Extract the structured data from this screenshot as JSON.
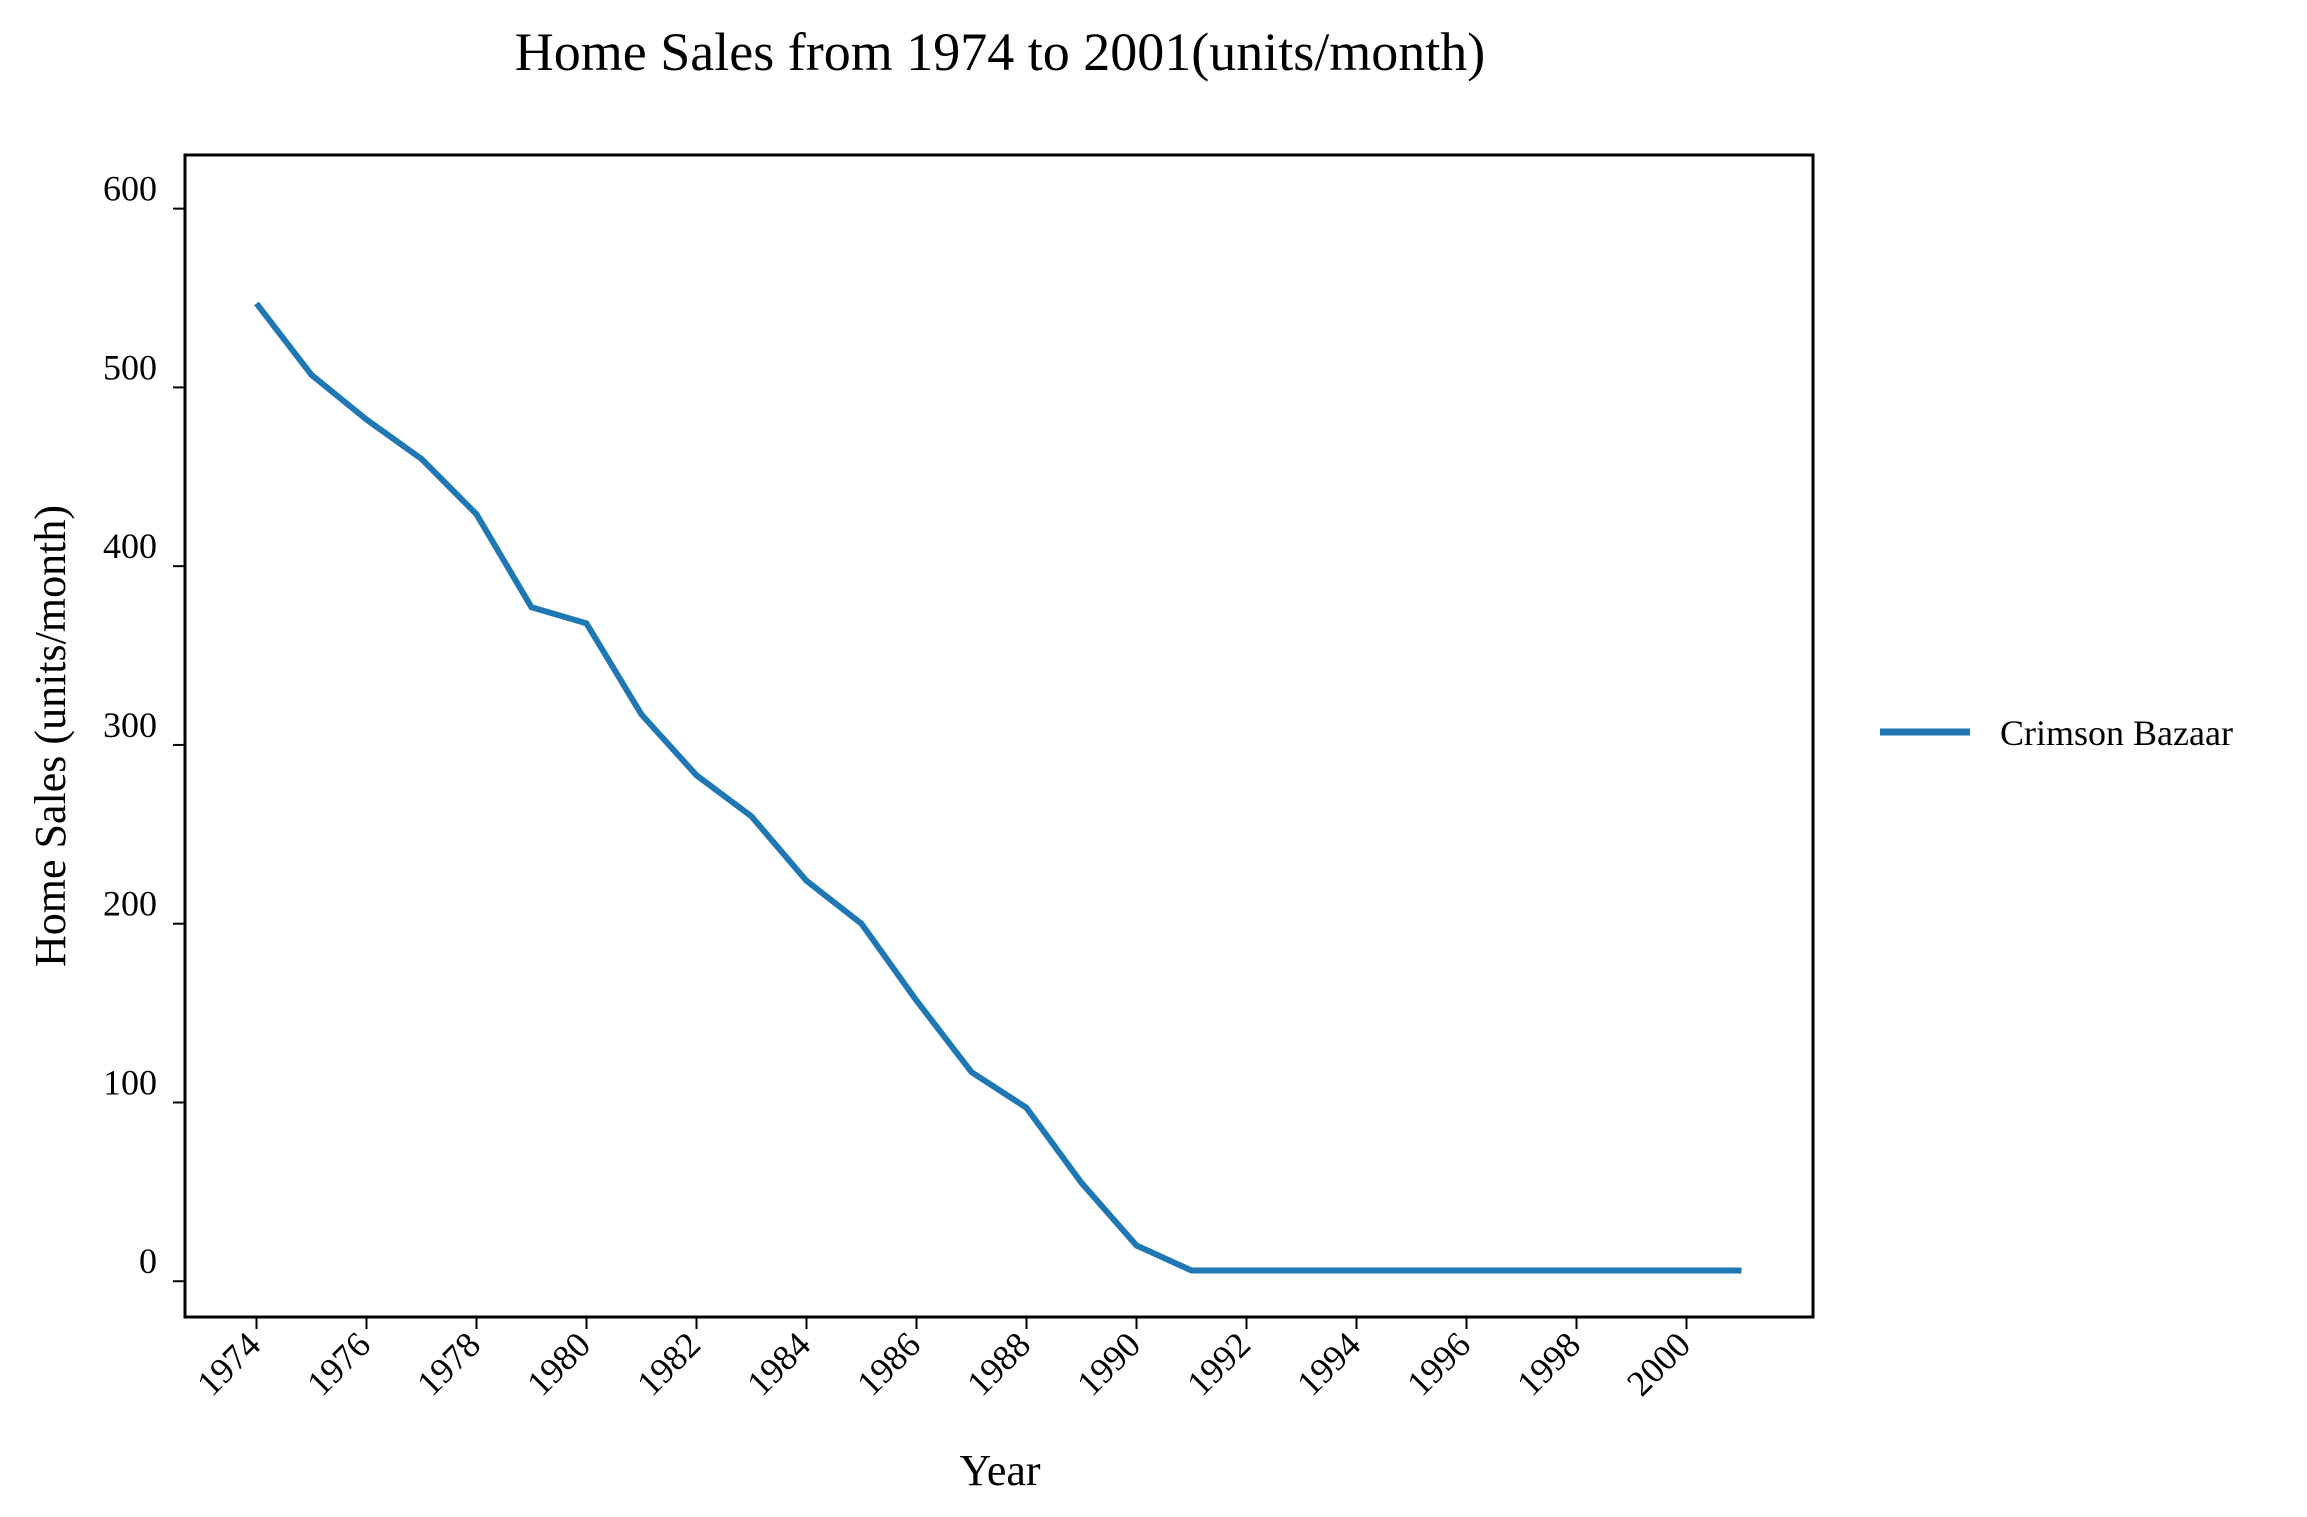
{
  "chart_data": {
    "type": "line",
    "title": "Home Sales from 1974 to 2001(units/month)",
    "xlabel": "Year",
    "ylabel": "Home Sales (units/month)",
    "x": [
      1974,
      1975,
      1976,
      1977,
      1978,
      1979,
      1980,
      1981,
      1982,
      1983,
      1984,
      1985,
      1986,
      1987,
      1988,
      1989,
      1990,
      1991,
      1992,
      1993,
      1994,
      1995,
      1996,
      1997,
      1998,
      1999,
      2000,
      2001
    ],
    "x_ticks": [
      "1974",
      "1976",
      "1978",
      "1980",
      "1982",
      "1984",
      "1986",
      "1988",
      "1990",
      "1992",
      "1994",
      "1996",
      "1998",
      "2000"
    ],
    "y_ticks": [
      "0",
      "100",
      "200",
      "300",
      "400",
      "500",
      "600"
    ],
    "xlim": [
      1972.7,
      2002.3
    ],
    "ylim": [
      -20,
      630
    ],
    "grid": false,
    "legend_position": "right",
    "series": [
      {
        "name": "Crimson Bazaar",
        "color": "#1f77b4",
        "values": [
          547,
          507,
          482,
          460,
          429,
          377,
          368,
          317,
          283,
          260,
          224,
          200,
          157,
          117,
          97,
          55,
          20,
          6,
          6,
          6,
          6,
          6,
          6,
          6,
          6,
          6,
          6,
          6
        ]
      }
    ]
  }
}
